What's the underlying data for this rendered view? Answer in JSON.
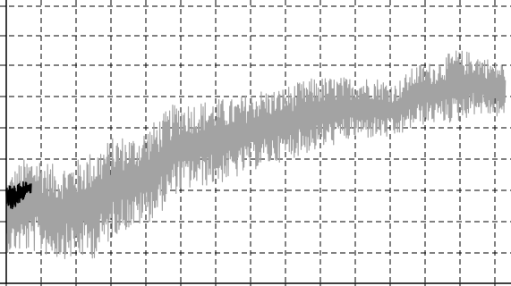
{
  "chart_data": {
    "type": "line",
    "title": "",
    "xlabel": "",
    "ylabel": "",
    "grid": true,
    "legend": "none",
    "xlim": [
      0,
      100
    ],
    "ylim": [
      0,
      9
    ],
    "x_tick_count": 15,
    "y_tick_count": 9,
    "series": [
      {
        "color": "#a3a3a3",
        "style": "dense-oscillation",
        "x": [
          0,
          3,
          6,
          10,
          14,
          18,
          22,
          26,
          30,
          34,
          38,
          42,
          46,
          50,
          54,
          58,
          62,
          66,
          70,
          74,
          78,
          82,
          86,
          90,
          94,
          98,
          100
        ],
        "center": [
          2.2,
          2.5,
          2.6,
          2.3,
          2.4,
          2.6,
          3.2,
          3.3,
          3.7,
          4.4,
          4.5,
          4.6,
          4.7,
          5.0,
          5.1,
          5.3,
          5.5,
          5.6,
          5.7,
          5.7,
          5.6,
          6.1,
          6.2,
          6.4,
          6.5,
          6.3,
          6.3
        ],
        "amplitude": [
          1.2,
          1.5,
          1.6,
          1.5,
          1.6,
          1.8,
          1.6,
          1.5,
          1.6,
          1.5,
          1.4,
          1.4,
          1.3,
          1.3,
          1.2,
          1.2,
          1.2,
          1.1,
          1.0,
          1.0,
          0.9,
          1.0,
          1.0,
          1.2,
          1.0,
          0.9,
          0.9
        ]
      },
      {
        "color": "#000000",
        "style": "dense-oscillation",
        "x": [
          0,
          1,
          2,
          3,
          4,
          5
        ],
        "center": [
          2.9,
          2.8,
          2.8,
          2.9,
          3.1,
          3.1
        ],
        "amplitude": [
          0.3,
          0.4,
          0.4,
          0.4,
          0.2,
          0.15
        ]
      }
    ]
  }
}
